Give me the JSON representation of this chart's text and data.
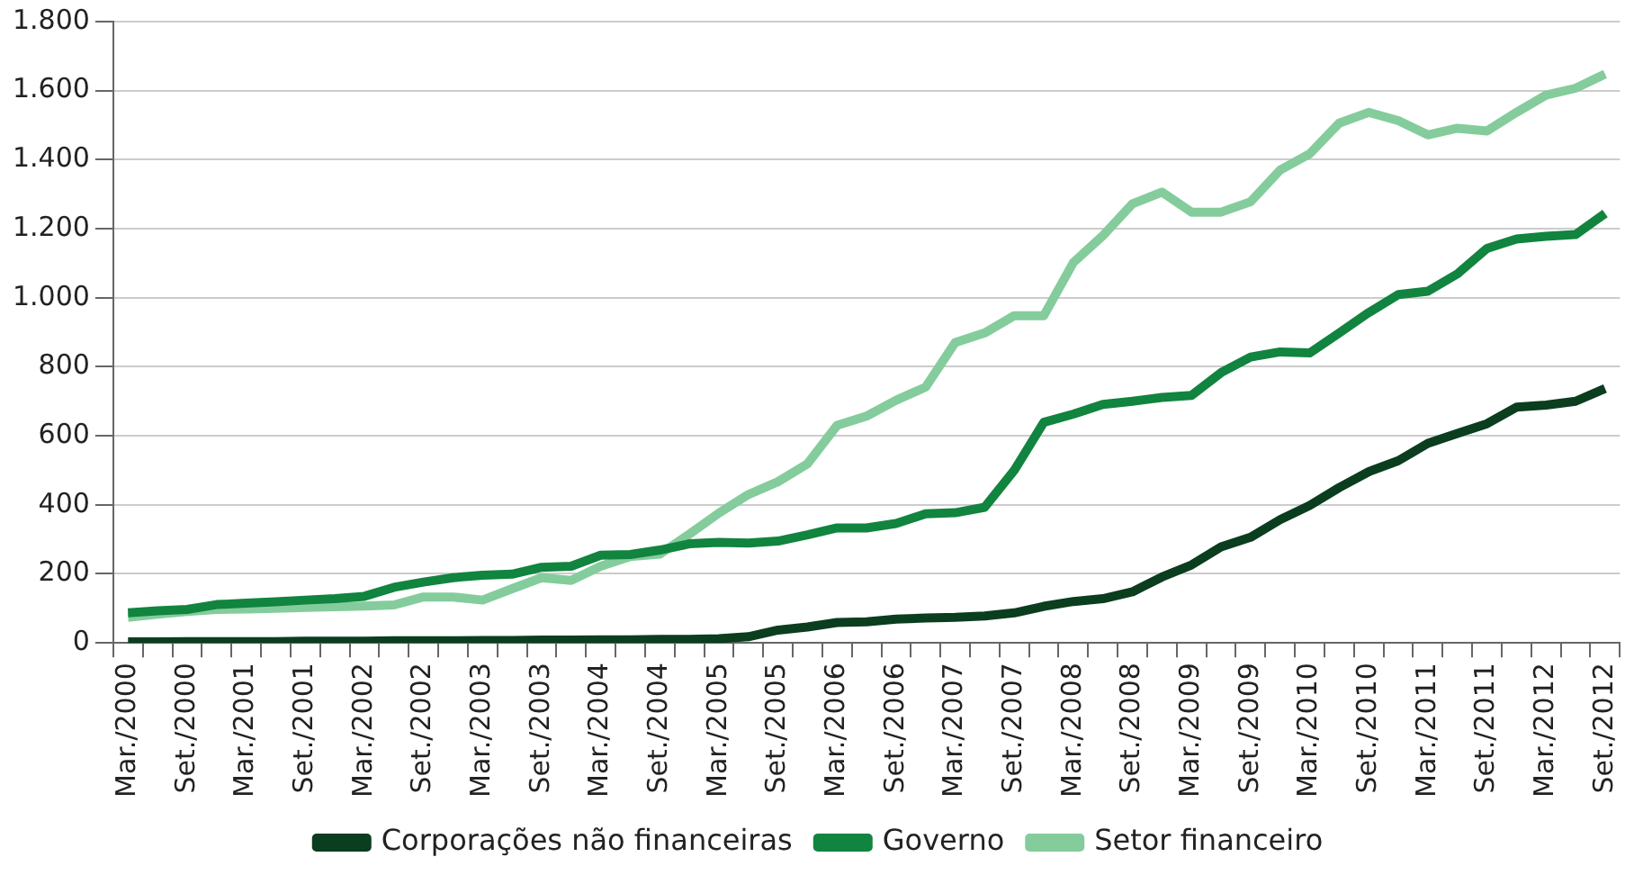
{
  "chart_data": {
    "type": "line",
    "categories": [
      "Mar./2000",
      null,
      "Set./2000",
      null,
      "Mar./2001",
      null,
      "Set./2001",
      null,
      "Mar./2002",
      null,
      "Set./2002",
      null,
      "Mar./2003",
      null,
      "Set./2003",
      null,
      "Mar./2004",
      null,
      "Set./2004",
      null,
      "Mar./2005",
      null,
      "Set./2005",
      null,
      "Mar./2006",
      null,
      "Set./2006",
      null,
      "Mar./2007",
      null,
      "Set./2007",
      null,
      "Mar./2008",
      null,
      "Set./2008",
      null,
      "Mar./2009",
      null,
      "Set./2009",
      null,
      "Mar./2010",
      null,
      "Set./2010",
      null,
      "Mar./2011",
      null,
      "Set./2011",
      null,
      "Mar./2012",
      null,
      "Set./2012"
    ],
    "series": [
      {
        "name": "Corporações não financeiras",
        "color": "#0b3d1f",
        "values": [
          3,
          3,
          4,
          4,
          4,
          4,
          5,
          5,
          5,
          6,
          6,
          6,
          7,
          7,
          8,
          8,
          9,
          9,
          10,
          10,
          12,
          18,
          37,
          46,
          59,
          61,
          69,
          72,
          74,
          78,
          87,
          106,
          120,
          128,
          148,
          191,
          226,
          278,
          306,
          357,
          398,
          450,
          496,
          528,
          578,
          607,
          635,
          683,
          689,
          700,
          737
        ]
      },
      {
        "name": "Governo",
        "color": "#11843f",
        "values": [
          87,
          93,
          97,
          111,
          115,
          119,
          124,
          128,
          135,
          161,
          176,
          189,
          196,
          199,
          219,
          222,
          254,
          256,
          269,
          287,
          291,
          289,
          295,
          313,
          333,
          333,
          346,
          374,
          377,
          393,
          500,
          639,
          663,
          691,
          700,
          711,
          717,
          783,
          828,
          843,
          840,
          898,
          957,
          1009,
          1019,
          1069,
          1143,
          1170,
          1178,
          1183,
          1244
        ]
      },
      {
        "name": "Setor financeiro",
        "color": "#84cc9c",
        "values": [
          74,
          83,
          91,
          97,
          98,
          100,
          103,
          105,
          107,
          110,
          133,
          133,
          124,
          157,
          189,
          181,
          222,
          250,
          257,
          315,
          376,
          430,
          467,
          519,
          630,
          657,
          703,
          741,
          870,
          898,
          948,
          948,
          1102,
          1180,
          1272,
          1306,
          1248,
          1248,
          1278,
          1370,
          1417,
          1506,
          1537,
          1513,
          1472,
          1491,
          1483,
          1537,
          1587,
          1607,
          1648
        ]
      }
    ],
    "ylim": [
      0,
      1800
    ],
    "yticks": [
      0,
      200,
      400,
      600,
      800,
      {
        "value": 1000,
        "label": "1.000"
      },
      {
        "value": 1200,
        "label": "1.200"
      },
      {
        "value": 1400,
        "label": "1.400"
      },
      {
        "value": 1600,
        "label": "1.600"
      },
      {
        "value": 1800,
        "label": "1.800"
      }
    ],
    "grid": "y",
    "legend": "bottom",
    "marker": "none",
    "line_style": "solid"
  }
}
